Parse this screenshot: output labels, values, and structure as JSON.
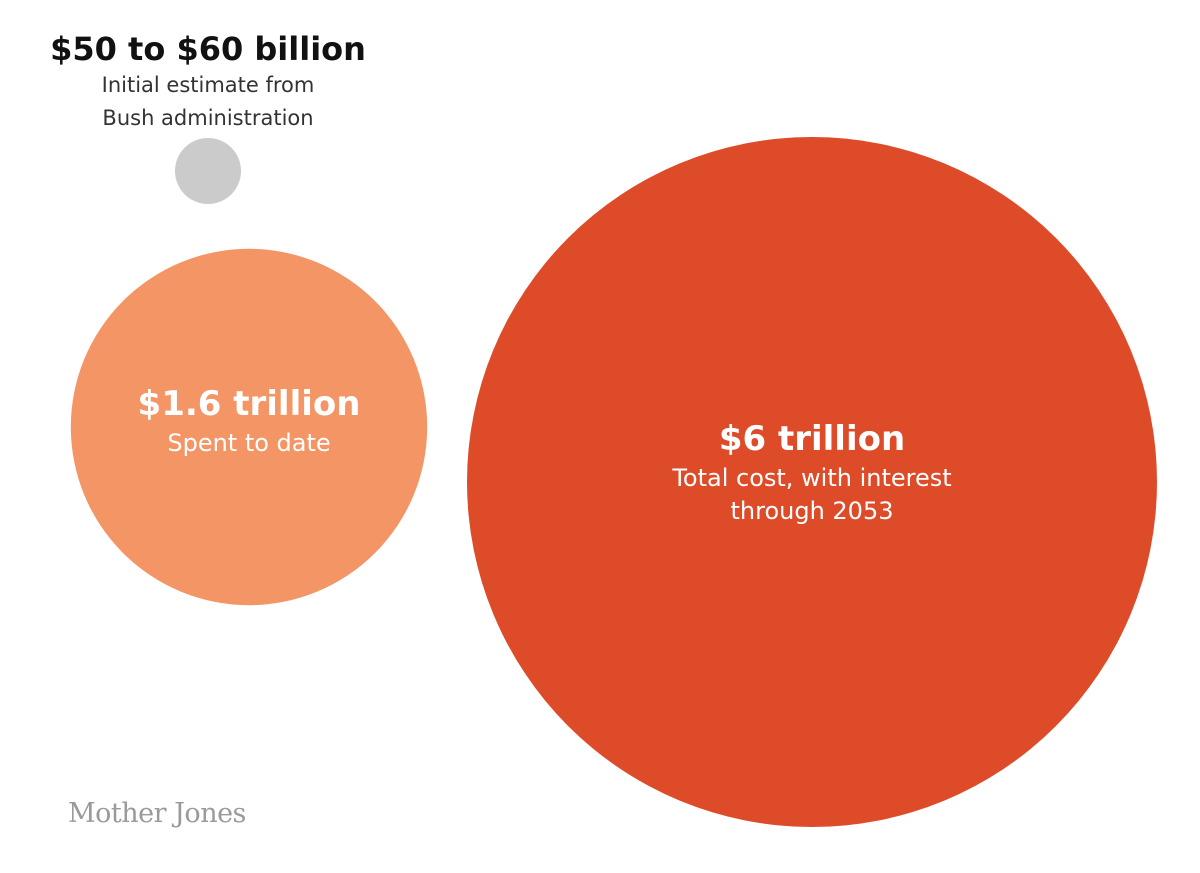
{
  "chart_data": {
    "type": "bubble",
    "title": "",
    "units": "USD",
    "series": [
      {
        "label": "$50 to $60 billion",
        "description": [
          "Initial estimate from",
          "Bush administration"
        ],
        "value_billions": 55,
        "color": "#cbcbcb",
        "label_position": "above"
      },
      {
        "label": "$1.6 trillion",
        "description": [
          "Spent to date"
        ],
        "value_billions": 1600,
        "color": "#f49566",
        "label_position": "inside"
      },
      {
        "label": "$6 trillion",
        "description": [
          "Total cost, with interest",
          "through 2053"
        ],
        "value_billions": 6000,
        "color": "#de4b28",
        "label_position": "inside"
      }
    ]
  },
  "source_logo": "Mother Jones"
}
